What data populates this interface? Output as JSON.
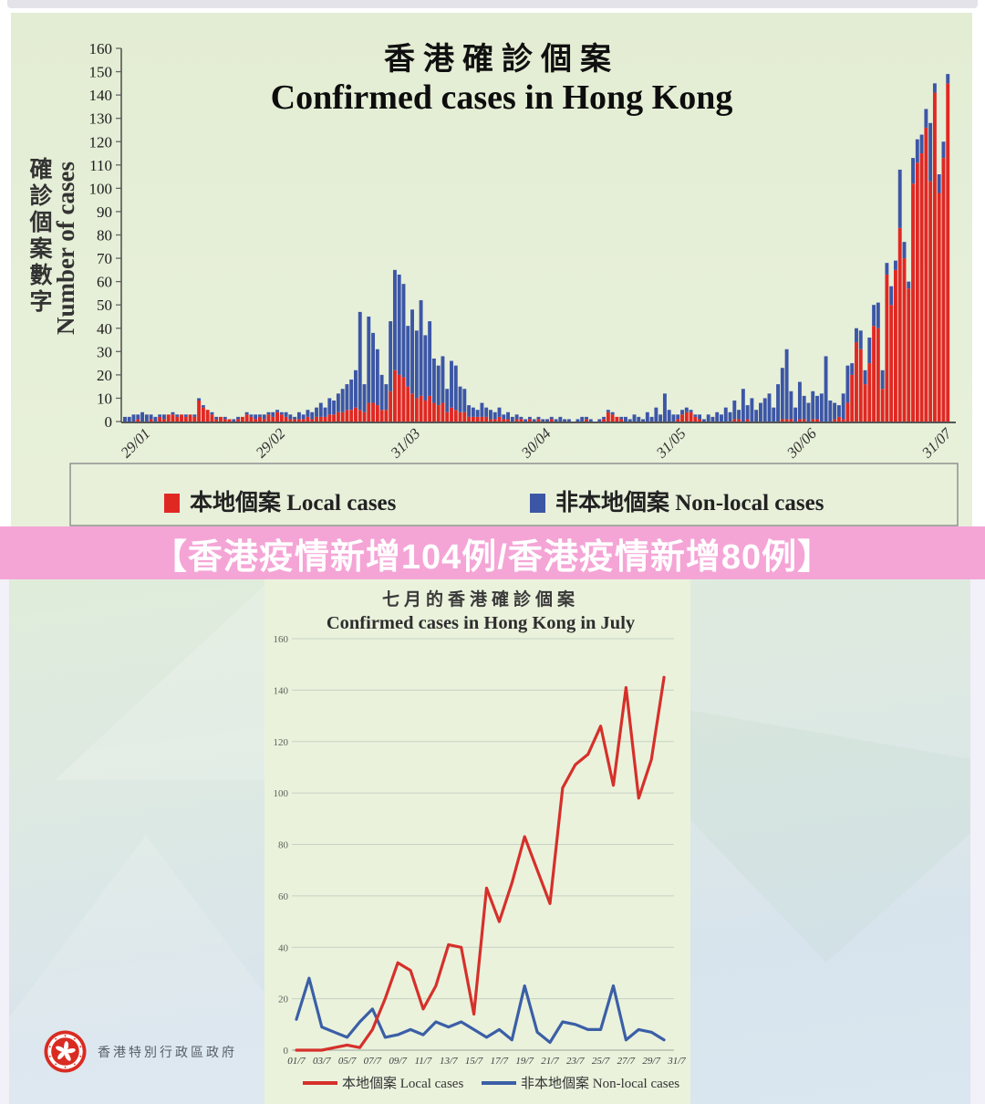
{
  "page": {
    "banner_text": "【香港疫情新增104例/香港疫情新增80例】",
    "footer_label": "香港特別行政區政府"
  },
  "colors": {
    "local": "#e02823",
    "nonlocal": "#3c56a6",
    "line_local": "#d6302b",
    "line_nonlocal": "#3b5fa6",
    "banner_bg": "#f4a5d6",
    "banner_text": "#ffffff",
    "axis": "#5a5a5a",
    "grid": "#c6d1c1",
    "emblem_red": "#d92b21"
  },
  "chart_data": [
    {
      "type": "bar",
      "stacked": true,
      "title_zh": "香港確診個案",
      "title_en": "Confirmed cases in Hong Kong",
      "ylabel_zh": "確診個案數字",
      "ylabel_en": "Number of cases",
      "ylim": [
        0,
        160
      ],
      "ytick_step": 10,
      "date_range": "23/01 - 30/07",
      "xticks": [
        {
          "label": "29/01",
          "index": 6
        },
        {
          "label": "29/02",
          "index": 37
        },
        {
          "label": "31/03",
          "index": 68
        },
        {
          "label": "30/04",
          "index": 98
        },
        {
          "label": "31/05",
          "index": 129
        },
        {
          "label": "30/06",
          "index": 159
        },
        {
          "label": "31/07",
          "index": 190
        }
      ],
      "legend": [
        {
          "label": "本地個案 Local cases",
          "marker": "square",
          "color": "#e02823"
        },
        {
          "label": "非本地個案 Non-local cases",
          "marker": "square",
          "color": "#3c56a6"
        }
      ],
      "series": [
        {
          "name": "本地個案 Local cases",
          "values": [
            0,
            0,
            0,
            1,
            0,
            0,
            1,
            0,
            2,
            1,
            3,
            3,
            2,
            3,
            2,
            3,
            2,
            9,
            6,
            5,
            3,
            1,
            2,
            1,
            1,
            0,
            1,
            2,
            3,
            2,
            1,
            2,
            1,
            3,
            2,
            4,
            3,
            2,
            1,
            1,
            1,
            1,
            2,
            1,
            2,
            2,
            2,
            3,
            3,
            4,
            4,
            5,
            5,
            6,
            5,
            4,
            8,
            8,
            7,
            5,
            5,
            13,
            22,
            20,
            19,
            15,
            12,
            10,
            11,
            9,
            11,
            8,
            7,
            8,
            4,
            6,
            5,
            4,
            4,
            2,
            2,
            2,
            2,
            2,
            1,
            1,
            2,
            1,
            1,
            0,
            1,
            1,
            0,
            1,
            0,
            1,
            0,
            0,
            1,
            0,
            0,
            0,
            0,
            0,
            0,
            0,
            1,
            0,
            0,
            0,
            1,
            4,
            3,
            2,
            1,
            0,
            0,
            0,
            0,
            0,
            0,
            0,
            0,
            0,
            0,
            0,
            0,
            1,
            3,
            4,
            4,
            2,
            1,
            0,
            0,
            0,
            0,
            0,
            0,
            0,
            1,
            1,
            0,
            1,
            0,
            0,
            0,
            0,
            0,
            0,
            0,
            1,
            1,
            1,
            0,
            1,
            1,
            0,
            1,
            1,
            0,
            0,
            0,
            1,
            2,
            1,
            8,
            20,
            34,
            31,
            16,
            25,
            41,
            40,
            14,
            63,
            50,
            65,
            83,
            70,
            57,
            102,
            111,
            115,
            126,
            103,
            141,
            98,
            113,
            145
          ]
        },
        {
          "name": "非本地個案 Non-local cases",
          "values": [
            2,
            2,
            3,
            2,
            4,
            3,
            2,
            2,
            1,
            2,
            0,
            1,
            1,
            0,
            1,
            0,
            1,
            1,
            1,
            0,
            1,
            1,
            0,
            1,
            0,
            1,
            1,
            0,
            1,
            1,
            2,
            1,
            2,
            1,
            2,
            1,
            1,
            2,
            2,
            1,
            3,
            2,
            3,
            3,
            4,
            6,
            4,
            7,
            6,
            8,
            10,
            11,
            13,
            16,
            42,
            12,
            37,
            30,
            24,
            15,
            11,
            30,
            43,
            43,
            40,
            26,
            36,
            29,
            41,
            28,
            32,
            19,
            17,
            20,
            10,
            20,
            19,
            11,
            10,
            5,
            4,
            3,
            6,
            4,
            4,
            3,
            4,
            2,
            3,
            2,
            2,
            1,
            1,
            1,
            1,
            1,
            1,
            1,
            1,
            1,
            2,
            1,
            1,
            0,
            1,
            2,
            1,
            1,
            0,
            1,
            1,
            1,
            1,
            0,
            1,
            2,
            1,
            3,
            2,
            1,
            4,
            2,
            6,
            3,
            12,
            5,
            3,
            2,
            2,
            2,
            1,
            1,
            2,
            1,
            3,
            2,
            4,
            3,
            6,
            4,
            8,
            4,
            14,
            6,
            10,
            5,
            8,
            10,
            12,
            6,
            16,
            22,
            30,
            12,
            6,
            16,
            10,
            8,
            12,
            10,
            12,
            28,
            9,
            7,
            5,
            11,
            16,
            5,
            6,
            8,
            6,
            11,
            9,
            11,
            8,
            5,
            8,
            4,
            25,
            7,
            3,
            11,
            10,
            8,
            8,
            25,
            4,
            8,
            7,
            4
          ]
        }
      ]
    },
    {
      "type": "line",
      "title_zh": "七月的香港確診個案",
      "title_en": "Confirmed cases in Hong Kong in July",
      "ylim": [
        0,
        160
      ],
      "ytick_step": 20,
      "days": 30,
      "x_labels": [
        "01/7",
        "03/7",
        "05/7",
        "07/7",
        "09/7",
        "11/7",
        "13/7",
        "15/7",
        "17/7",
        "19/7",
        "21/7",
        "23/7",
        "25/7",
        "27/7",
        "29/7",
        "31/7"
      ],
      "legend": [
        {
          "label": "本地個案 Local  cases",
          "marker": "line",
          "color": "#d6302b"
        },
        {
          "label": "非本地個案 Non-local  cases",
          "marker": "line",
          "color": "#3b5fa6"
        }
      ],
      "series": [
        {
          "name": "本地個案 Local cases",
          "color": "#d6302b",
          "values": [
            0,
            0,
            0,
            1,
            2,
            1,
            8,
            20,
            34,
            31,
            16,
            25,
            41,
            40,
            14,
            63,
            50,
            65,
            83,
            70,
            57,
            102,
            111,
            115,
            126,
            103,
            141,
            98,
            113,
            145
          ]
        },
        {
          "name": "非本地個案 Non-local cases",
          "color": "#3b5fa6",
          "values": [
            12,
            28,
            9,
            7,
            5,
            11,
            16,
            5,
            6,
            8,
            6,
            11,
            9,
            11,
            8,
            5,
            8,
            4,
            25,
            7,
            3,
            11,
            10,
            8,
            8,
            25,
            4,
            8,
            7,
            4
          ]
        }
      ]
    }
  ]
}
